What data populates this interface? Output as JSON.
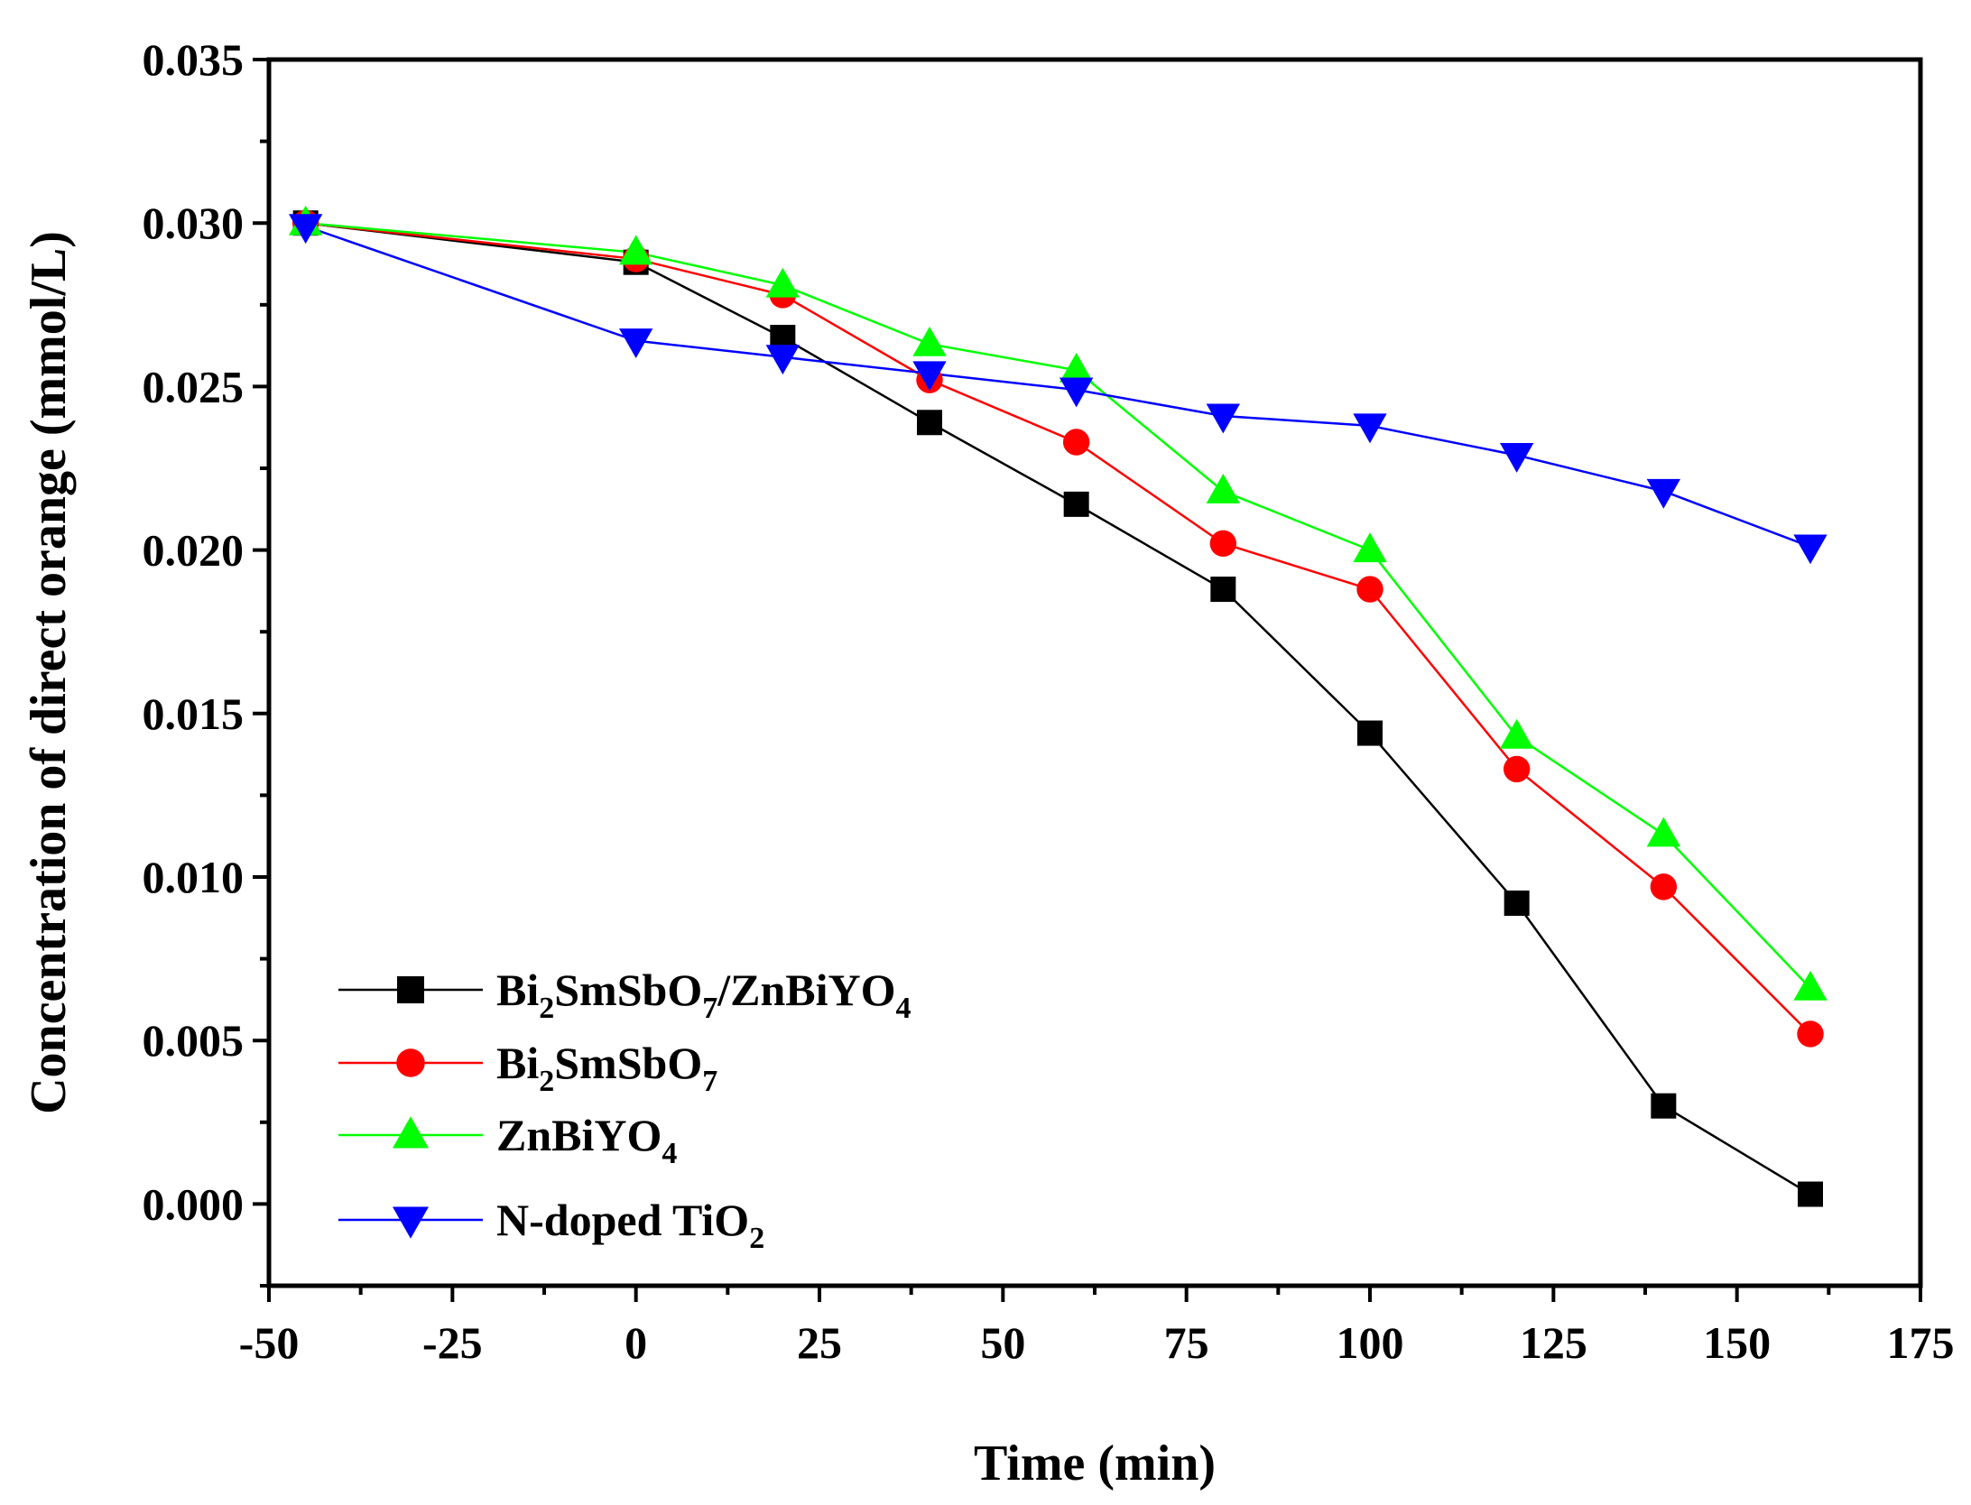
{
  "chart_data": {
    "type": "line",
    "title": "",
    "xlabel": "Time (min)",
    "ylabel": "Concentration of direct orange (mmol/L)",
    "xlim": [
      -50,
      175
    ],
    "ylim": [
      -0.0025,
      0.035
    ],
    "xticks": [
      -50,
      -25,
      0,
      25,
      50,
      75,
      100,
      125,
      150,
      175
    ],
    "xtick_labels": [
      "-50",
      "-25",
      "0",
      "25",
      "50",
      "75",
      "100",
      "125",
      "150",
      "175"
    ],
    "yticks": [
      0.0,
      0.005,
      0.01,
      0.015,
      0.02,
      0.025,
      0.03,
      0.035
    ],
    "ytick_labels": [
      "0.000",
      "0.005",
      "0.010",
      "0.015",
      "0.020",
      "0.025",
      "0.030",
      "0.035"
    ],
    "grid": false,
    "legend_position": "bottom-left",
    "x": [
      -45,
      0,
      20,
      40,
      60,
      80,
      100,
      120,
      140,
      160
    ],
    "series": [
      {
        "name": "Bi2SmSbO7/ZnBiYO4",
        "legend": [
          {
            "t": "Bi",
            "sub": false
          },
          {
            "t": "2",
            "sub": true
          },
          {
            "t": "SmSbO",
            "sub": false
          },
          {
            "t": "7",
            "sub": true
          },
          {
            "t": "/ZnBiYO",
            "sub": false
          },
          {
            "t": "4",
            "sub": true
          }
        ],
        "color": "#000000",
        "marker": "square",
        "values": [
          0.03,
          0.0288,
          0.0265,
          0.0239,
          0.0214,
          0.0188,
          0.0144,
          0.0092,
          0.003,
          0.0003
        ]
      },
      {
        "name": "Bi2SmSbO7",
        "legend": [
          {
            "t": "Bi",
            "sub": false
          },
          {
            "t": "2",
            "sub": true
          },
          {
            "t": "SmSbO",
            "sub": false
          },
          {
            "t": "7",
            "sub": true
          }
        ],
        "color": "#ff0000",
        "marker": "circle",
        "values": [
          0.03,
          0.0289,
          0.0278,
          0.0252,
          0.0233,
          0.0202,
          0.0188,
          0.0133,
          0.0097,
          0.0052
        ]
      },
      {
        "name": "ZnBiYO4",
        "legend": [
          {
            "t": "ZnBiYO",
            "sub": false
          },
          {
            "t": "4",
            "sub": true
          }
        ],
        "color": "#00ff00",
        "marker": "triangle-up",
        "values": [
          0.03,
          0.0291,
          0.0281,
          0.0263,
          0.0255,
          0.0218,
          0.02,
          0.0143,
          0.0113,
          0.0066
        ]
      },
      {
        "name": "N-doped TiO2",
        "legend": [
          {
            "t": "N-doped TiO",
            "sub": false
          },
          {
            "t": "2",
            "sub": true
          }
        ],
        "color": "#0000ff",
        "marker": "triangle-down",
        "values": [
          0.0299,
          0.0264,
          0.0259,
          0.0254,
          0.0249,
          0.0241,
          0.0238,
          0.0229,
          0.0218,
          0.0201
        ]
      }
    ]
  }
}
